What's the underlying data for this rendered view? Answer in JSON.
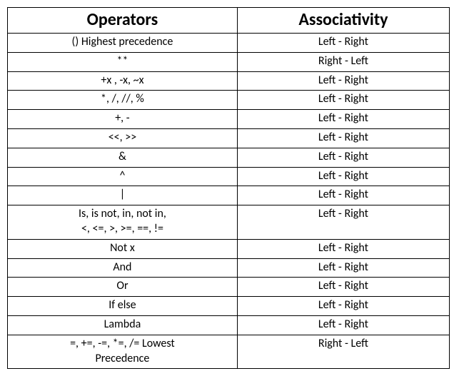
{
  "table": {
    "headers": {
      "operators": "Operators",
      "associativity": "Associativity"
    },
    "rows": [
      {
        "op": "()  Highest precedence",
        "assoc": "Left - Right"
      },
      {
        "op": "**",
        "assoc": "Right - Left"
      },
      {
        "op": "+x , -x, ~x",
        "assoc": "Left - Right"
      },
      {
        "op": "*, /, //, %",
        "assoc": "Left - Right"
      },
      {
        "op": "+, -",
        "assoc": "Left - Right"
      },
      {
        "op": "<<, >>",
        "assoc": "Left - Right"
      },
      {
        "op": "&",
        "assoc": "Left - Right"
      },
      {
        "op": "^",
        "assoc": "Left - Right"
      },
      {
        "op": "|",
        "assoc": "Left - Right"
      },
      {
        "op": "Is, is not, in, not in,\n<, <=, >, >=, ==, !=",
        "assoc": "Left - Right"
      },
      {
        "op": "Not x",
        "assoc": "Left - Right"
      },
      {
        "op": "And",
        "assoc": "Left - Right"
      },
      {
        "op": "Or",
        "assoc": "Left - Right"
      },
      {
        "op": "If else",
        "assoc": "Left - Right"
      },
      {
        "op": "Lambda",
        "assoc": "Left - Right"
      },
      {
        "op": "=, +=, -=, *=, /=  Lowest\nPrecedence",
        "assoc": "Right - Left"
      }
    ],
    "colors": {
      "border": "#000000",
      "background": "#ffffff",
      "text": "#000000"
    },
    "fontsize": {
      "header": 24,
      "cell": 16
    }
  }
}
